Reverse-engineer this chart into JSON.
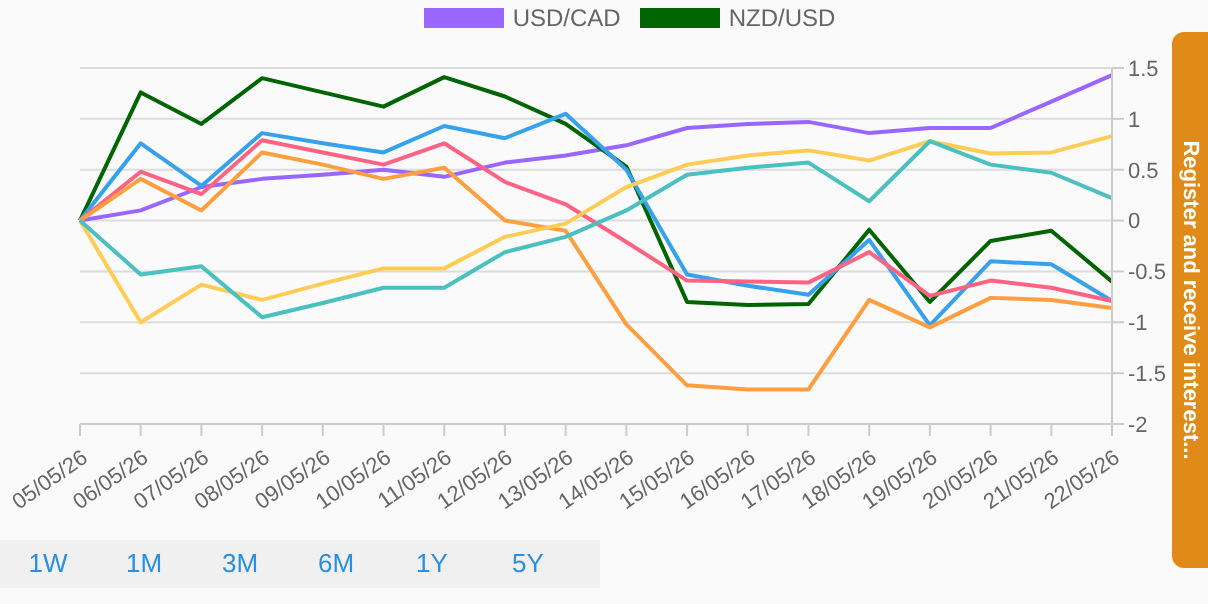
{
  "chart_data": {
    "type": "line",
    "categories": [
      "05/05/26",
      "06/05/26",
      "07/05/26",
      "08/05/26",
      "09/05/26",
      "10/05/26",
      "11/05/26",
      "12/05/26",
      "13/05/26",
      "14/05/26",
      "15/05/26",
      "16/05/26",
      "17/05/26",
      "18/05/26",
      "19/05/26",
      "20/05/26",
      "21/05/26",
      "22/05/26"
    ],
    "series": [
      {
        "name": "USD/CAD",
        "color": "#9966ff",
        "values": [
          0,
          0.1,
          0.33,
          0.41,
          0.45,
          0.5,
          0.43,
          0.57,
          0.64,
          0.74,
          0.91,
          0.95,
          0.97,
          0.86,
          0.91,
          0.91,
          1.17,
          1.43
        ]
      },
      {
        "name": "NZD/USD",
        "color": "#006400",
        "values": [
          0,
          1.26,
          0.95,
          1.4,
          1.26,
          1.12,
          1.41,
          1.22,
          0.95,
          0.53,
          -0.8,
          -0.83,
          -0.82,
          -0.09,
          -0.8,
          -0.2,
          -0.1,
          -0.6
        ]
      },
      {
        "color": "#36a2eb",
        "values": [
          0,
          0.76,
          0.34,
          0.86,
          0.76,
          0.67,
          0.93,
          0.81,
          1.05,
          0.5,
          -0.53,
          -0.64,
          -0.73,
          -0.19,
          -1.03,
          -0.4,
          -0.43,
          -0.79
        ]
      },
      {
        "color": "#ff6384",
        "values": [
          0,
          0.48,
          0.26,
          0.79,
          0.67,
          0.55,
          0.76,
          0.38,
          0.16,
          -0.21,
          -0.59,
          -0.6,
          -0.61,
          -0.31,
          -0.74,
          -0.59,
          -0.66,
          -0.79
        ]
      },
      {
        "color": "#ff9f40",
        "values": [
          0,
          0.41,
          0.1,
          0.67,
          0.55,
          0.41,
          0.52,
          0,
          -0.1,
          -1.02,
          -1.62,
          -1.66,
          -1.66,
          -0.78,
          -1.05,
          -0.76,
          -0.78,
          -0.86
        ]
      },
      {
        "color": "#ffcd56",
        "values": [
          0,
          -1.0,
          -0.63,
          -0.78,
          -0.62,
          -0.47,
          -0.47,
          -0.16,
          -0.03,
          0.33,
          0.55,
          0.64,
          0.69,
          0.59,
          0.78,
          0.66,
          0.67,
          0.83
        ]
      },
      {
        "color": "#4bc0c0",
        "values": [
          0,
          -0.53,
          -0.45,
          -0.95,
          -0.81,
          -0.66,
          -0.66,
          -0.31,
          -0.16,
          0.1,
          0.45,
          0.52,
          0.57,
          0.19,
          0.78,
          0.55,
          0.47,
          0.22
        ]
      }
    ],
    "ylim": [
      -2,
      1.5
    ],
    "yticks": [
      -2,
      -1.5,
      -1,
      -0.5,
      0,
      0.5,
      1,
      1.5
    ],
    "grid": "y",
    "legend": "top",
    "marker": "none",
    "line_style": "solid",
    "annotations": [
      "1W",
      "1M",
      "3M",
      "6M",
      "1Y",
      "5Y",
      "Register and receive interest..."
    ]
  }
}
